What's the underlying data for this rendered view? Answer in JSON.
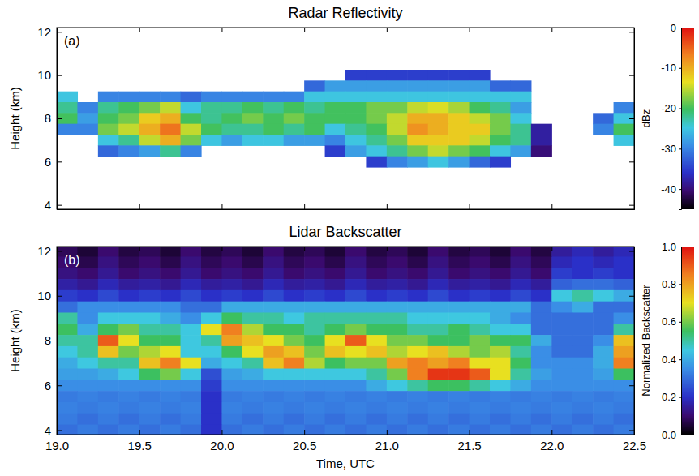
{
  "chart_data": [
    {
      "type": "heatmap",
      "title": "Radar Reflectivity",
      "panel_label": "(a)",
      "y_label": "Height (km)",
      "xlim": [
        19,
        22.5
      ],
      "ylim": [
        3.8,
        12.2
      ],
      "xticks": [
        19,
        19.5,
        20,
        20.5,
        21,
        21.5,
        22,
        22.5
      ],
      "yticks": [
        4,
        6,
        8,
        10,
        12
      ],
      "tick_labels": "y",
      "grid": false,
      "x": [
        19.0625,
        19.1875,
        19.3125,
        19.4375,
        19.5625,
        19.6875,
        19.8125,
        19.9375,
        20.0625,
        20.1875,
        20.3125,
        20.4375,
        20.5625,
        20.6875,
        20.8125,
        20.9375,
        21.0625,
        21.1875,
        21.3125,
        21.4375,
        21.5625,
        21.6875,
        21.8125,
        21.9375,
        22.0625,
        22.1875,
        22.3125,
        22.4375
      ],
      "y": [
        12,
        11.5,
        11,
        10.5,
        10,
        9.5,
        9,
        8.5,
        8,
        7.5,
        7,
        6.5,
        6,
        5.5,
        5,
        4.5,
        4
      ],
      "values": [
        [
          null,
          null,
          null,
          null,
          null,
          null,
          null,
          null,
          null,
          null,
          null,
          null,
          null,
          null,
          null,
          null,
          null,
          null,
          null,
          null,
          null,
          null,
          null,
          null,
          null,
          null,
          null,
          null
        ],
        [
          null,
          null,
          null,
          null,
          null,
          null,
          null,
          null,
          null,
          null,
          null,
          null,
          null,
          null,
          null,
          null,
          null,
          null,
          null,
          null,
          null,
          null,
          null,
          null,
          null,
          null,
          null,
          null
        ],
        [
          null,
          null,
          null,
          null,
          null,
          null,
          null,
          null,
          null,
          null,
          null,
          null,
          null,
          null,
          null,
          null,
          null,
          null,
          null,
          null,
          null,
          null,
          null,
          null,
          null,
          null,
          null,
          null
        ],
        [
          null,
          null,
          null,
          null,
          null,
          null,
          null,
          null,
          null,
          null,
          null,
          null,
          null,
          null,
          null,
          null,
          null,
          null,
          null,
          null,
          null,
          null,
          null,
          null,
          null,
          null,
          null,
          null
        ],
        [
          null,
          null,
          null,
          null,
          null,
          null,
          null,
          null,
          null,
          null,
          null,
          null,
          null,
          null,
          -35,
          -35,
          -35,
          -35,
          -35,
          -35,
          -35,
          null,
          null,
          null,
          null,
          null,
          null,
          null
        ],
        [
          null,
          null,
          null,
          null,
          null,
          null,
          null,
          null,
          null,
          null,
          null,
          null,
          -32,
          -28,
          -28,
          -28,
          -28,
          -28,
          -28,
          -28,
          -28,
          -32,
          -32,
          null,
          null,
          null,
          null,
          null
        ],
        [
          -25,
          null,
          -30,
          -30,
          -30,
          -30,
          -32,
          -30,
          -30,
          -30,
          -30,
          -30,
          -25,
          -25,
          -25,
          -25,
          -25,
          -25,
          -25,
          -25,
          -25,
          -25,
          -25,
          null,
          null,
          null,
          null,
          null
        ],
        [
          -22,
          -30,
          -22,
          -20,
          -18,
          -15,
          -25,
          -22,
          -22,
          -20,
          -22,
          -20,
          -22,
          -20,
          -20,
          -18,
          -18,
          -15,
          -14,
          -16,
          -20,
          -22,
          -28,
          null,
          null,
          null,
          null,
          -30
        ],
        [
          -20,
          -28,
          -20,
          -18,
          -12,
          -10,
          -20,
          -22,
          -20,
          -18,
          -20,
          -18,
          -20,
          -20,
          -20,
          -18,
          -15,
          -10,
          -10,
          -12,
          -15,
          -18,
          -25,
          null,
          null,
          null,
          -32,
          -25
        ],
        [
          -30,
          -30,
          -18,
          -15,
          -10,
          -6,
          -15,
          -20,
          -22,
          -22,
          -20,
          -22,
          -20,
          -25,
          -22,
          -20,
          -15,
          -8,
          -10,
          -12,
          -12,
          -18,
          -22,
          -38,
          null,
          null,
          -30,
          -20
        ],
        [
          null,
          null,
          -25,
          -22,
          -15,
          -10,
          -18,
          -25,
          -28,
          -25,
          -25,
          -28,
          -28,
          -30,
          -25,
          -22,
          -18,
          -12,
          -12,
          -12,
          -15,
          -20,
          -22,
          -38,
          null,
          null,
          null,
          -25
        ],
        [
          null,
          null,
          -32,
          -30,
          -28,
          -22,
          -30,
          null,
          null,
          null,
          null,
          null,
          null,
          -35,
          -28,
          -25,
          -22,
          -18,
          -15,
          -18,
          -20,
          -25,
          -28,
          -40,
          null,
          null,
          null,
          null
        ],
        [
          null,
          null,
          null,
          null,
          null,
          null,
          null,
          null,
          null,
          null,
          null,
          null,
          null,
          null,
          null,
          -35,
          -30,
          -28,
          -25,
          -28,
          -32,
          -35,
          null,
          null,
          null,
          null,
          null,
          null
        ],
        [
          null,
          null,
          null,
          null,
          null,
          null,
          null,
          null,
          null,
          null,
          null,
          null,
          null,
          null,
          null,
          null,
          null,
          null,
          null,
          null,
          null,
          null,
          null,
          null,
          null,
          null,
          null,
          null
        ],
        [
          null,
          null,
          null,
          null,
          null,
          null,
          null,
          null,
          null,
          null,
          null,
          null,
          null,
          null,
          null,
          null,
          null,
          null,
          null,
          null,
          null,
          null,
          null,
          null,
          null,
          null,
          null,
          null
        ],
        [
          null,
          null,
          null,
          null,
          null,
          null,
          null,
          null,
          null,
          null,
          null,
          null,
          null,
          null,
          null,
          null,
          null,
          null,
          null,
          null,
          null,
          null,
          null,
          null,
          null,
          null,
          null,
          null
        ],
        [
          null,
          null,
          null,
          null,
          null,
          null,
          null,
          null,
          null,
          null,
          null,
          null,
          null,
          null,
          null,
          null,
          null,
          null,
          null,
          null,
          null,
          null,
          null,
          null,
          null,
          null,
          null,
          null
        ]
      ],
      "colorbar": {
        "label": "dBz",
        "range": [
          -45,
          0
        ],
        "ticks": [
          0,
          -10,
          -20,
          -30,
          -40
        ]
      }
    },
    {
      "type": "heatmap",
      "title": "Lidar Backscatter",
      "panel_label": "(b)",
      "y_label": "Height (km)",
      "x_label": "Time, UTC",
      "xlim": [
        19,
        22.5
      ],
      "ylim": [
        3.8,
        12.2
      ],
      "xticks": [
        {
          "value": 19,
          "label": "19.0"
        },
        19.5,
        {
          "value": 20,
          "label": "20.0"
        },
        20.5,
        {
          "value": 21,
          "label": "21.0"
        },
        21.5,
        {
          "value": 22,
          "label": "22.0"
        },
        22.5
      ],
      "yticks": [
        4,
        6,
        8,
        10,
        12
      ],
      "grid": false,
      "x": [
        19.0625,
        19.1875,
        19.3125,
        19.4375,
        19.5625,
        19.6875,
        19.8125,
        19.9375,
        20.0625,
        20.1875,
        20.3125,
        20.4375,
        20.5625,
        20.6875,
        20.8125,
        20.9375,
        21.0625,
        21.1875,
        21.3125,
        21.4375,
        21.5625,
        21.6875,
        21.8125,
        21.9375,
        22.0625,
        22.1875,
        22.3125,
        22.4375
      ],
      "y": [
        12,
        11.5,
        11,
        10.5,
        10,
        9.5,
        9,
        8.5,
        8,
        7.5,
        7,
        6.5,
        6,
        5.5,
        5,
        4.5,
        4
      ],
      "values": [
        [
          0.08,
          0.05,
          0.1,
          0.06,
          0.08,
          0.05,
          0.1,
          0.06,
          0.08,
          0.05,
          0.1,
          0.06,
          0.08,
          0.05,
          0.1,
          0.06,
          0.08,
          0.05,
          0.1,
          0.06,
          0.08,
          0.05,
          0.1,
          0.06,
          0.15,
          0.18,
          0.15,
          0.18
        ],
        [
          0.1,
          0.07,
          0.12,
          0.08,
          0.1,
          0.07,
          0.12,
          0.08,
          0.1,
          0.07,
          0.12,
          0.08,
          0.1,
          0.07,
          0.12,
          0.08,
          0.1,
          0.07,
          0.12,
          0.08,
          0.1,
          0.07,
          0.12,
          0.08,
          0.18,
          0.2,
          0.18,
          0.2
        ],
        [
          0.12,
          0.1,
          0.14,
          0.1,
          0.12,
          0.1,
          0.14,
          0.1,
          0.12,
          0.1,
          0.14,
          0.1,
          0.12,
          0.1,
          0.14,
          0.1,
          0.12,
          0.1,
          0.14,
          0.1,
          0.12,
          0.1,
          0.14,
          0.1,
          0.22,
          0.2,
          0.22,
          0.2
        ],
        [
          0.16,
          0.14,
          0.18,
          0.15,
          0.16,
          0.14,
          0.18,
          0.15,
          0.16,
          0.14,
          0.18,
          0.15,
          0.16,
          0.14,
          0.18,
          0.15,
          0.16,
          0.14,
          0.18,
          0.15,
          0.16,
          0.14,
          0.18,
          0.15,
          0.28,
          0.3,
          0.3,
          0.28
        ],
        [
          0.22,
          0.2,
          0.24,
          0.2,
          0.22,
          0.2,
          0.24,
          0.2,
          0.22,
          0.2,
          0.24,
          0.2,
          0.22,
          0.2,
          0.24,
          0.2,
          0.22,
          0.2,
          0.24,
          0.2,
          0.22,
          0.2,
          0.24,
          0.2,
          0.45,
          0.5,
          0.45,
          0.4
        ],
        [
          0.3,
          0.35,
          0.35,
          0.35,
          0.35,
          0.35,
          0.3,
          0.3,
          0.4,
          0.4,
          0.4,
          0.4,
          0.4,
          0.4,
          0.4,
          0.4,
          0.4,
          0.4,
          0.4,
          0.4,
          0.4,
          0.4,
          0.4,
          0.3,
          0.35,
          0.4,
          0.3,
          0.3
        ],
        [
          0.5,
          0.35,
          0.45,
          0.45,
          0.45,
          0.4,
          0.35,
          0.45,
          0.55,
          0.5,
          0.5,
          0.45,
          0.5,
          0.5,
          0.5,
          0.5,
          0.5,
          0.45,
          0.45,
          0.45,
          0.45,
          0.4,
          0.35,
          0.3,
          0.3,
          0.3,
          0.3,
          0.35
        ],
        [
          0.55,
          0.4,
          0.55,
          0.6,
          0.5,
          0.5,
          0.45,
          0.7,
          0.85,
          0.65,
          0.55,
          0.55,
          0.5,
          0.55,
          0.6,
          0.55,
          0.55,
          0.5,
          0.5,
          0.55,
          0.5,
          0.45,
          0.45,
          0.3,
          0.3,
          0.3,
          0.3,
          0.5
        ],
        [
          0.5,
          0.5,
          0.9,
          0.7,
          0.55,
          0.55,
          0.45,
          0.5,
          0.8,
          0.75,
          0.7,
          0.6,
          0.55,
          0.7,
          0.9,
          0.7,
          0.6,
          0.6,
          0.55,
          0.55,
          0.6,
          0.55,
          0.55,
          0.4,
          0.3,
          0.3,
          0.35,
          0.75
        ],
        [
          0.45,
          0.5,
          0.75,
          0.6,
          0.65,
          0.7,
          0.45,
          0.45,
          0.55,
          0.7,
          0.8,
          0.75,
          0.6,
          0.75,
          0.7,
          0.75,
          0.65,
          0.7,
          0.75,
          0.65,
          0.6,
          0.65,
          0.5,
          0.35,
          0.3,
          0.3,
          0.4,
          0.8
        ],
        [
          0.4,
          0.45,
          0.5,
          0.5,
          0.75,
          0.85,
          0.7,
          0.4,
          0.45,
          0.5,
          0.75,
          0.85,
          0.65,
          0.55,
          0.6,
          0.6,
          0.8,
          0.85,
          0.8,
          0.85,
          0.7,
          0.7,
          0.55,
          0.35,
          0.35,
          0.35,
          0.4,
          0.85
        ],
        [
          0.38,
          0.38,
          0.4,
          0.45,
          0.55,
          0.6,
          0.45,
          0.25,
          0.38,
          0.4,
          0.45,
          0.45,
          0.45,
          0.45,
          0.45,
          0.5,
          0.6,
          0.85,
          0.95,
          0.95,
          0.9,
          0.7,
          0.5,
          0.38,
          0.35,
          0.35,
          0.38,
          0.55
        ],
        [
          0.35,
          0.35,
          0.35,
          0.35,
          0.35,
          0.35,
          0.35,
          0.22,
          0.35,
          0.35,
          0.35,
          0.35,
          0.35,
          0.35,
          0.35,
          0.4,
          0.45,
          0.5,
          0.55,
          0.55,
          0.5,
          0.45,
          0.4,
          0.35,
          0.35,
          0.35,
          0.35,
          0.35
        ],
        [
          0.32,
          0.33,
          0.32,
          0.33,
          0.32,
          0.33,
          0.32,
          0.2,
          0.32,
          0.33,
          0.32,
          0.33,
          0.32,
          0.33,
          0.32,
          0.33,
          0.32,
          0.33,
          0.32,
          0.33,
          0.32,
          0.33,
          0.32,
          0.33,
          0.32,
          0.33,
          0.32,
          0.33
        ],
        [
          0.33,
          0.32,
          0.33,
          0.32,
          0.33,
          0.32,
          0.33,
          0.2,
          0.33,
          0.32,
          0.33,
          0.32,
          0.33,
          0.32,
          0.33,
          0.32,
          0.33,
          0.32,
          0.33,
          0.32,
          0.33,
          0.32,
          0.33,
          0.32,
          0.33,
          0.32,
          0.33,
          0.32
        ],
        [
          0.32,
          0.3,
          0.32,
          0.3,
          0.32,
          0.3,
          0.32,
          0.2,
          0.32,
          0.3,
          0.32,
          0.3,
          0.32,
          0.3,
          0.32,
          0.3,
          0.32,
          0.3,
          0.32,
          0.3,
          0.32,
          0.3,
          0.32,
          0.3,
          0.32,
          0.3,
          0.32,
          0.3
        ],
        [
          0.3,
          0.32,
          0.3,
          0.32,
          0.3,
          0.32,
          0.3,
          0.2,
          0.3,
          0.32,
          0.3,
          0.32,
          0.3,
          0.32,
          0.3,
          0.32,
          0.3,
          0.32,
          0.3,
          0.32,
          0.3,
          0.32,
          0.3,
          0.32,
          0.3,
          0.32,
          0.3,
          0.32
        ]
      ],
      "colorbar": {
        "label": "Normalized Backscatter",
        "range": [
          0,
          1
        ],
        "ticks": [
          {
            "value": 0,
            "label": "0.0"
          },
          0.2,
          0.4,
          0.6,
          0.8,
          {
            "value": 1,
            "label": "1.0"
          }
        ]
      }
    }
  ]
}
